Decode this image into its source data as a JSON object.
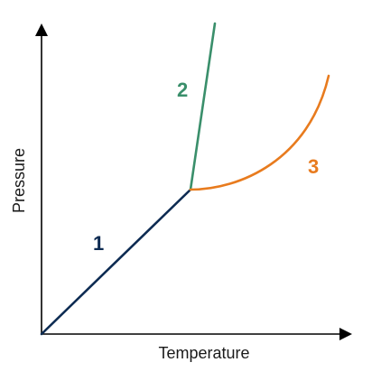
{
  "axes": {
    "x_label": "Temperature",
    "y_label": "Pressure"
  },
  "curves": [
    {
      "id": "1",
      "label": "1",
      "color": "#0d2b52"
    },
    {
      "id": "2",
      "label": "2",
      "color": "#3a8f6b"
    },
    {
      "id": "3",
      "label": "3",
      "color": "#e87b1e"
    }
  ]
}
